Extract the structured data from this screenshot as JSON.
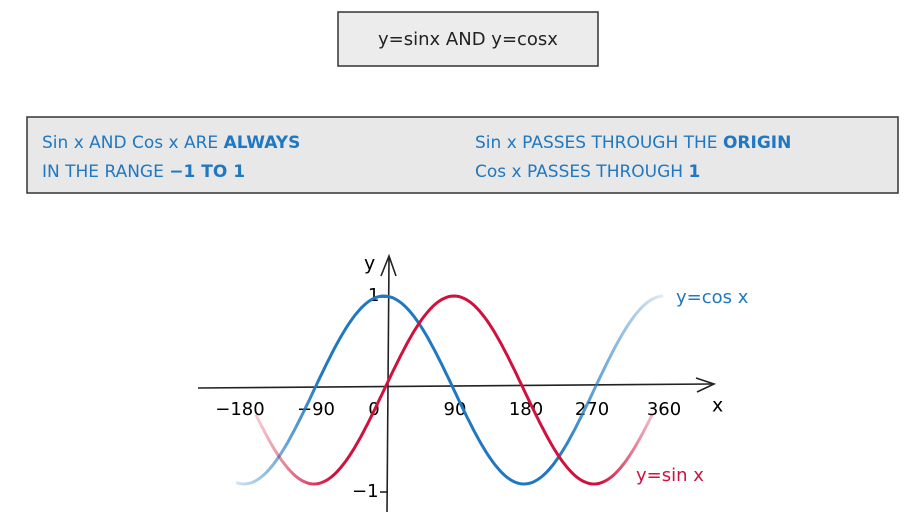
{
  "header": {
    "title": "y=sinx   AND   y=cosx"
  },
  "info": {
    "left": [
      {
        "text": "Sin x   AND   Cos x   ARE",
        "emph": "ALWAYS"
      },
      {
        "text": "IN   THE   RANGE",
        "emph": "−1  TO  1"
      }
    ],
    "right": [
      {
        "text": "Sin x   PASSES   THROUGH   THE",
        "emph": "ORIGIN"
      },
      {
        "text": "Cos x   PASSES   THROUGH",
        "emph": "1"
      }
    ]
  },
  "graph": {
    "y_axis_label": "y",
    "x_axis_label": "x",
    "y_labels": [
      "1",
      "−1"
    ],
    "x_labels": [
      "−180",
      "−90",
      "0",
      "90",
      "180",
      "270",
      "360"
    ],
    "cos_label": "y=cos x",
    "sin_label": "y=sin x"
  }
}
